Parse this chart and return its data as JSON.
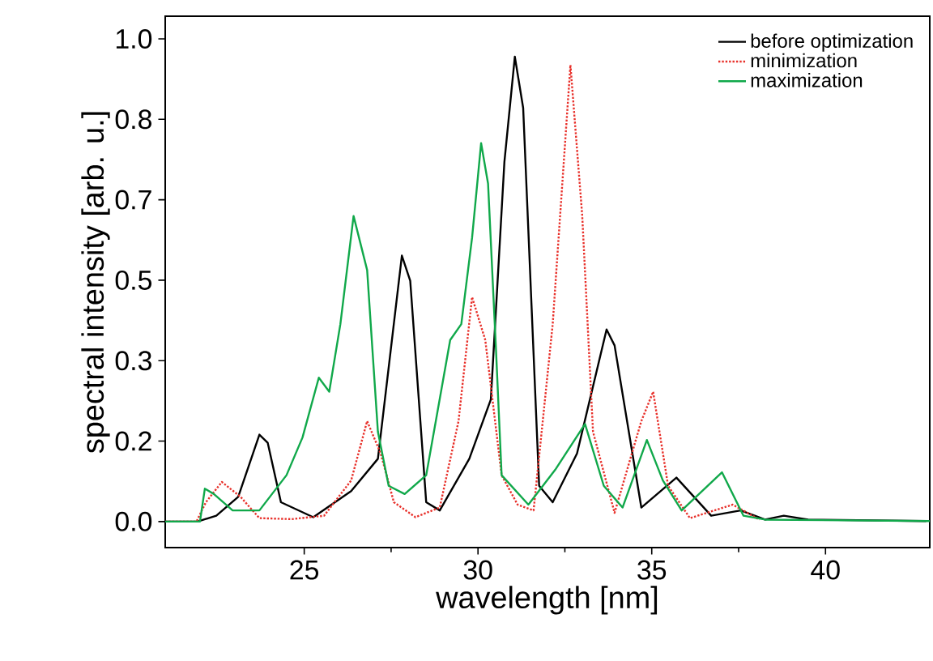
{
  "chart_data": {
    "type": "line",
    "xlabel": "wavelength [nm]",
    "ylabel": "spectral intensity [arb. u.]",
    "xlim": [
      21,
      43
    ],
    "ylim": [
      -0.054,
      1.047
    ],
    "xticks": [
      25,
      30,
      35,
      40
    ],
    "yticks": [
      {
        "value": 0,
        "label": "0.0"
      },
      {
        "value": 0.1667,
        "label": "0.2"
      },
      {
        "value": 0.3333,
        "label": "0.3"
      },
      {
        "value": 0.5,
        "label": "0.5"
      },
      {
        "value": 0.6667,
        "label": "0.7"
      },
      {
        "value": 0.8333,
        "label": "0.8"
      },
      {
        "value": 1.0,
        "label": "1.0"
      }
    ],
    "grid": false,
    "legend": "top right",
    "marker": "none",
    "series": [
      {
        "name": "before optimization",
        "color": "#000000",
        "line_style": "solid",
        "x": [
          21,
          21.93,
          22.47,
          23.1,
          23.71,
          23.95,
          24.33,
          25.26,
          26.35,
          27.12,
          27.81,
          28.05,
          28.51,
          28.9,
          29.75,
          30.37,
          30.76,
          31.06,
          31.3,
          31.76,
          32.15,
          32.85,
          33.7,
          33.93,
          34.7,
          35.71,
          36.71,
          37.56,
          38.26,
          38.8,
          39.5,
          42.9
        ],
        "values": [
          0,
          0,
          0.012,
          0.051,
          0.18,
          0.163,
          0.04,
          0.009,
          0.063,
          0.13,
          0.551,
          0.499,
          0.04,
          0.023,
          0.13,
          0.253,
          0.745,
          0.963,
          0.857,
          0.074,
          0.04,
          0.141,
          0.398,
          0.365,
          0.029,
          0.091,
          0.012,
          0.023,
          0.004,
          0.012,
          0.004,
          0.001
        ]
      },
      {
        "name": "minimization",
        "color": "#e8302a",
        "line_style": "dotted",
        "x": [
          21,
          21.9,
          22.17,
          22.63,
          23.17,
          23.71,
          24.64,
          25.57,
          26.35,
          26.81,
          27.2,
          27.58,
          28.2,
          28.9,
          29.44,
          29.83,
          30.21,
          30.68,
          31.14,
          31.6,
          32.15,
          32.66,
          33.0,
          33.31,
          33.93,
          34.7,
          35.04,
          35.47,
          36.1,
          37.33,
          38.1
        ],
        "values": [
          0,
          0,
          0.04,
          0.082,
          0.051,
          0.007,
          0.005,
          0.012,
          0.085,
          0.208,
          0.141,
          0.04,
          0.009,
          0.029,
          0.208,
          0.465,
          0.376,
          0.096,
          0.035,
          0.023,
          0.409,
          0.946,
          0.633,
          0.186,
          0.018,
          0.208,
          0.269,
          0.074,
          0.007,
          0.035,
          0.004
        ]
      },
      {
        "name": "maximization",
        "color": "#10a84a",
        "line_style": "solid",
        "x": [
          21,
          22.0,
          22.14,
          22.4,
          22.94,
          23.71,
          24.49,
          24.95,
          25.42,
          25.72,
          26.04,
          26.42,
          26.81,
          27.12,
          27.43,
          27.89,
          28.51,
          29.2,
          29.52,
          29.83,
          30.09,
          30.29,
          30.52,
          30.68,
          31.45,
          32.22,
          33.08,
          33.62,
          34.16,
          34.86,
          35.32,
          35.86,
          37.02,
          37.64,
          38.26,
          43
        ],
        "values": [
          0,
          0,
          0.068,
          0.057,
          0.023,
          0.023,
          0.096,
          0.174,
          0.298,
          0.269,
          0.409,
          0.633,
          0.521,
          0.186,
          0.074,
          0.057,
          0.096,
          0.376,
          0.409,
          0.588,
          0.784,
          0.7,
          0.353,
          0.096,
          0.035,
          0.107,
          0.202,
          0.074,
          0.029,
          0.169,
          0.085,
          0.023,
          0.102,
          0.012,
          0.004,
          0.001
        ]
      }
    ]
  }
}
